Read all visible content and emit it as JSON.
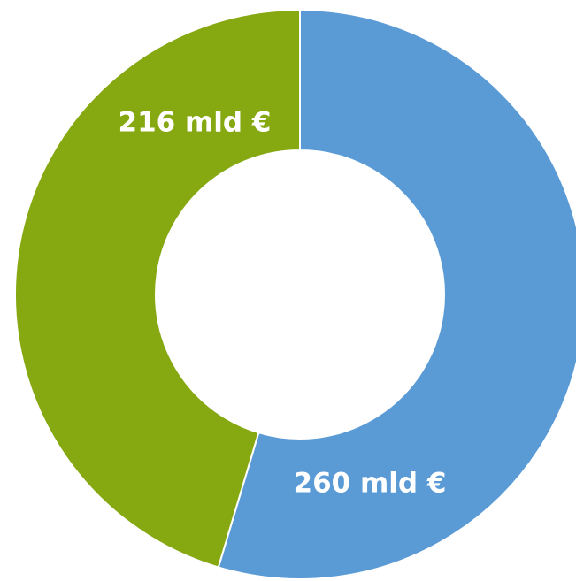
{
  "chart_data": {
    "type": "donut",
    "values": [
      260,
      216
    ],
    "value_labels": [
      "260 mld €",
      "216 mld €"
    ],
    "colors": [
      "#5b9bd5",
      "#86a811"
    ]
  }
}
